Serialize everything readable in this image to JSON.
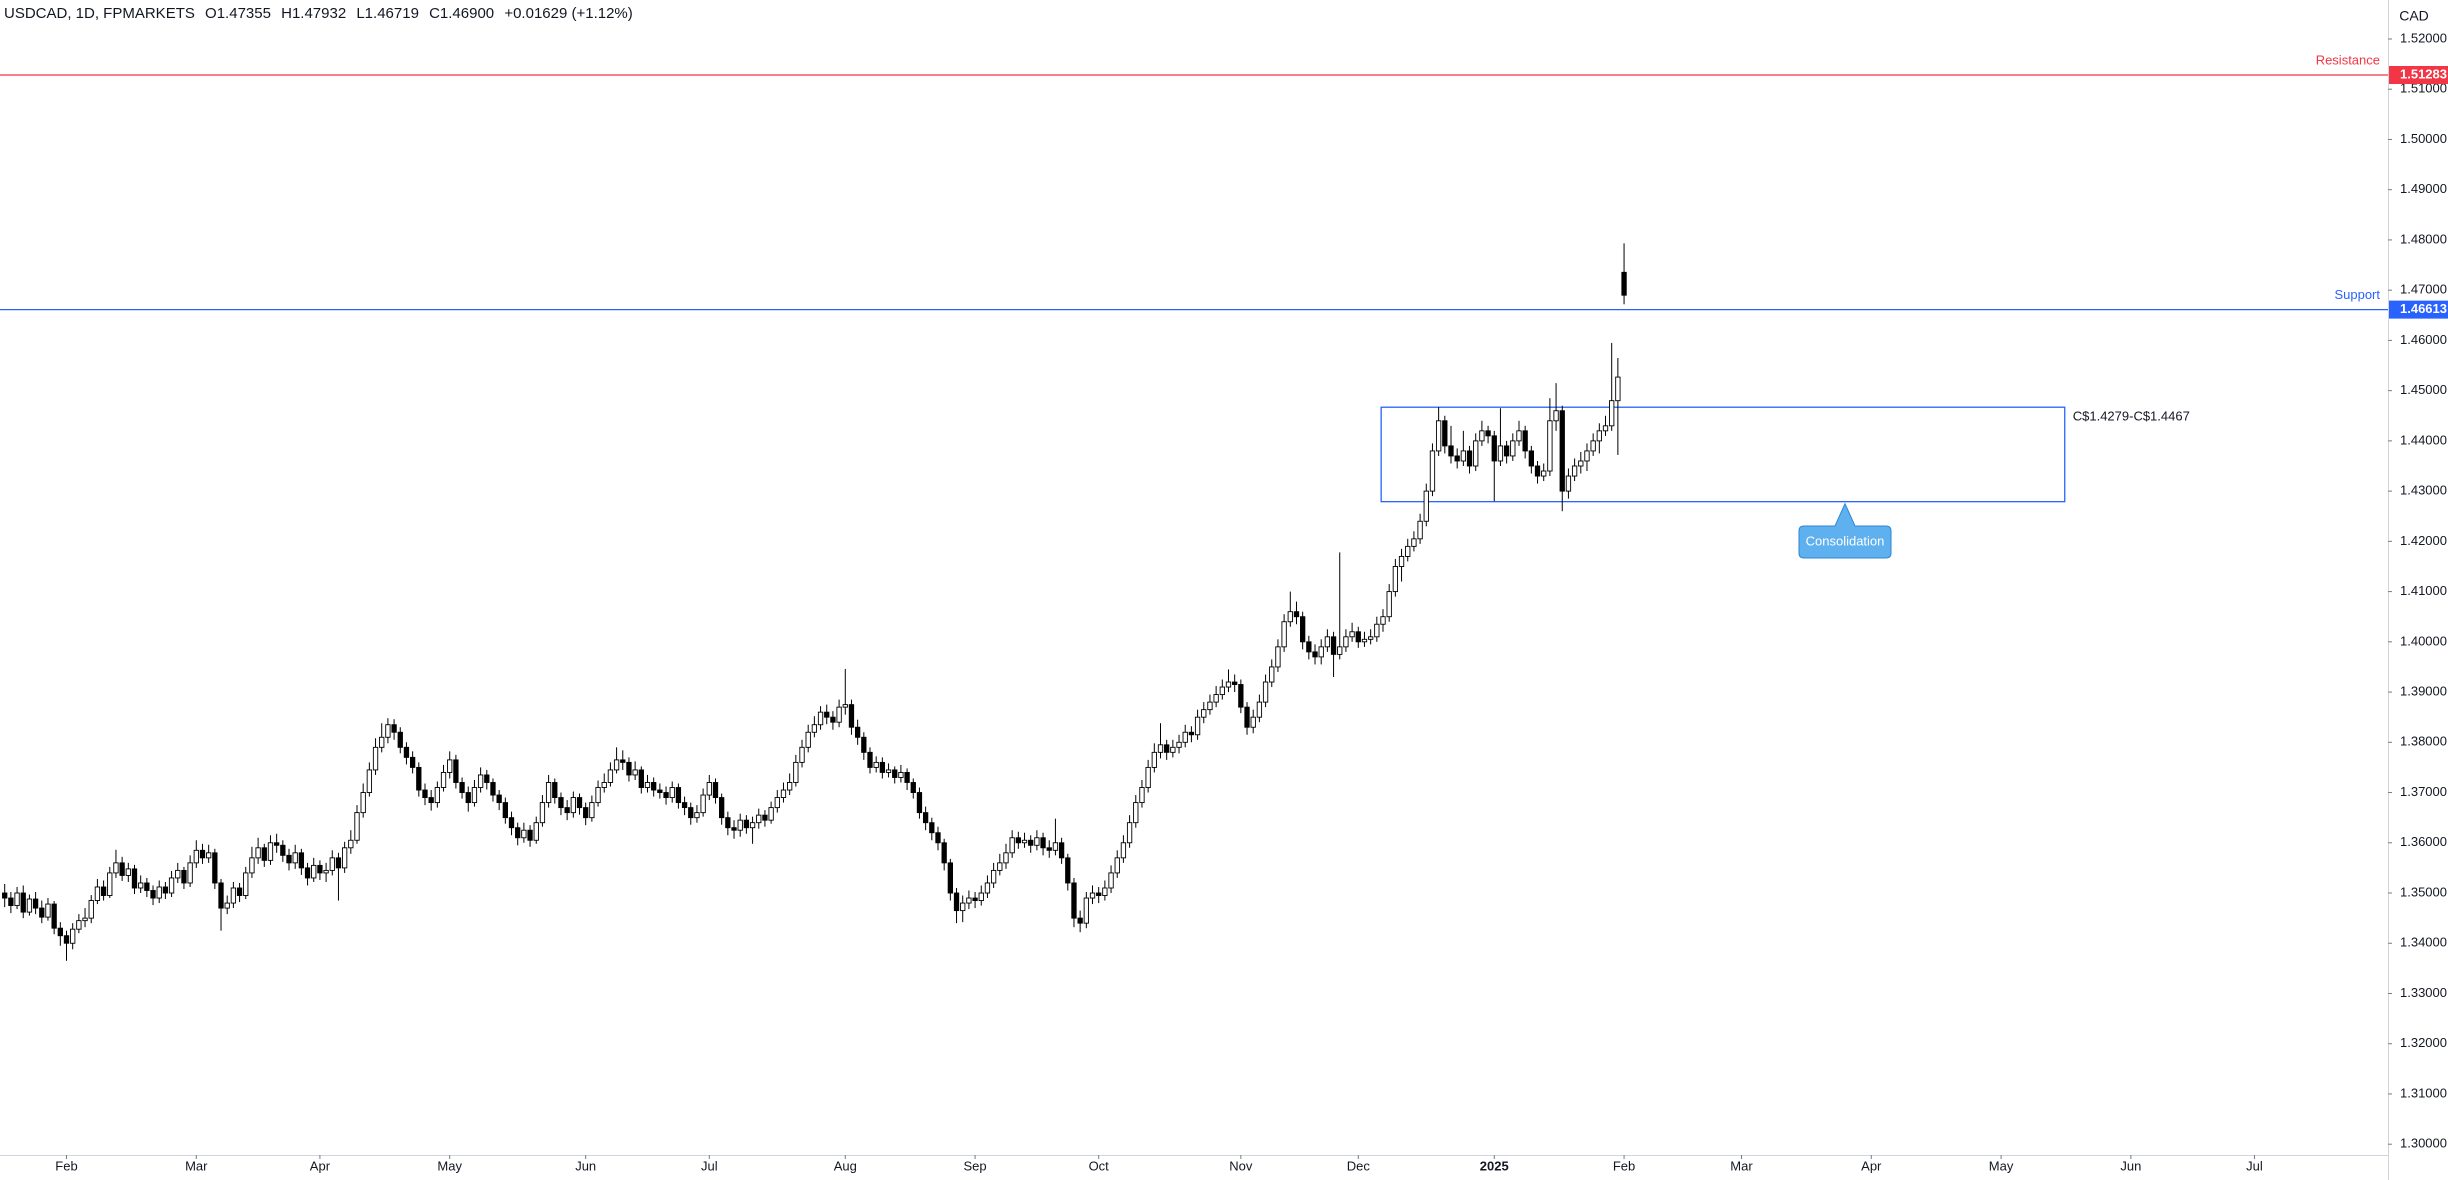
{
  "chart_data": {
    "type": "candlestick",
    "header": {
      "symbol": "USDCAD, 1D, FPMARKETS",
      "open": "O1.47355",
      "high": "H1.47932",
      "low": "L1.46719",
      "close": "C1.46900",
      "change": "+0.01629 (+1.12%)"
    },
    "y_axis_label": "CAD",
    "up_color": "#ffffff",
    "down_color": "#000000",
    "open": [
      1.35,
      1.349,
      1.3475,
      1.35,
      1.3462,
      1.3488,
      1.347,
      1.3452,
      1.3478,
      1.343,
      1.3415,
      1.34,
      1.3428,
      1.3445,
      1.345,
      1.3485,
      1.3512,
      1.3495,
      1.354,
      1.356,
      1.3535,
      1.3548,
      1.351,
      1.352,
      1.3505,
      1.349,
      1.3512,
      1.35,
      1.353,
      1.3545,
      1.352,
      1.356,
      1.3585,
      1.357,
      1.358,
      1.352,
      1.347,
      1.348,
      1.351,
      1.3495,
      1.354,
      1.357,
      1.359,
      1.3565,
      1.36,
      1.3595,
      1.3575,
      1.356,
      1.358,
      1.355,
      1.353,
      1.3555,
      1.354,
      1.3545,
      1.357,
      1.355,
      1.359,
      1.3605,
      1.366,
      1.37,
      1.3745,
      1.379,
      1.381,
      1.3835,
      1.382,
      1.379,
      1.377,
      1.375,
      1.3705,
      1.369,
      1.368,
      1.371,
      1.374,
      1.3765,
      1.372,
      1.37,
      1.368,
      1.371,
      1.3735,
      1.372,
      1.3695,
      1.368,
      1.365,
      1.363,
      1.361,
      1.3625,
      1.3605,
      1.364,
      1.368,
      1.372,
      1.369,
      1.367,
      1.366,
      1.369,
      1.367,
      1.365,
      1.368,
      1.371,
      1.372,
      1.3745,
      1.3765,
      1.376,
      1.3735,
      1.3745,
      1.371,
      1.372,
      1.3705,
      1.37,
      1.369,
      1.371,
      1.368,
      1.367,
      1.365,
      1.366,
      1.3695,
      1.372,
      1.369,
      1.365,
      1.363,
      1.3625,
      1.3645,
      1.363,
      1.364,
      1.3655,
      1.3645,
      1.367,
      1.369,
      1.3705,
      1.372,
      1.376,
      1.379,
      1.382,
      1.3835,
      1.386,
      1.385,
      1.384,
      1.387,
      1.3875,
      1.383,
      1.381,
      1.378,
      1.375,
      1.376,
      1.374,
      1.3745,
      1.373,
      1.374,
      1.372,
      1.37,
      1.366,
      1.364,
      1.362,
      1.36,
      1.356,
      1.35,
      1.3465,
      1.348,
      1.349,
      1.3485,
      1.35,
      1.352,
      1.3545,
      1.356,
      1.358,
      1.361,
      1.36,
      1.3605,
      1.3595,
      1.361,
      1.359,
      1.3585,
      1.36,
      1.357,
      1.352,
      1.345,
      1.344,
      1.349,
      1.35,
      1.3495,
      1.351,
      1.354,
      1.357,
      1.36,
      1.364,
      1.368,
      1.371,
      1.375,
      1.378,
      1.3795,
      1.378,
      1.379,
      1.38,
      1.382,
      1.3815,
      1.385,
      1.3865,
      1.388,
      1.3895,
      1.391,
      1.392,
      1.3915,
      1.387,
      1.383,
      1.385,
      1.388,
      1.392,
      1.395,
      1.399,
      1.404,
      1.406,
      1.405,
      1.4,
      1.398,
      1.397,
      1.399,
      1.401,
      1.3975,
      1.399,
      1.401,
      1.402,
      1.4,
      1.4005,
      1.401,
      1.4035,
      1.405,
      1.41,
      1.415,
      1.417,
      1.419,
      1.4205,
      1.424,
      1.43,
      1.438,
      1.444,
      1.439,
      1.437,
      1.436,
      1.438,
      1.435,
      1.44,
      1.442,
      1.441,
      1.436,
      1.439,
      1.437,
      1.44,
      1.442,
      1.438,
      1.435,
      1.433,
      1.434,
      1.444,
      1.446,
      1.43,
      1.433,
      1.435,
      1.436,
      1.438,
      1.44,
      1.442,
      1.443,
      1.448,
      1.47355
    ],
    "high": [
      1.3518,
      1.3502,
      1.3512,
      1.3515,
      1.3497,
      1.3502,
      1.3485,
      1.349,
      1.3484,
      1.3442,
      1.3425,
      1.344,
      1.3458,
      1.347,
      1.3496,
      1.3528,
      1.3525,
      1.3552,
      1.3586,
      1.3572,
      1.356,
      1.3556,
      1.3535,
      1.353,
      1.3515,
      1.3525,
      1.3522,
      1.3544,
      1.356,
      1.3552,
      1.3575,
      1.3605,
      1.3598,
      1.3596,
      1.3588,
      1.3528,
      1.3495,
      1.3522,
      1.352,
      1.3552,
      1.3592,
      1.361,
      1.3598,
      1.3615,
      1.3618,
      1.3605,
      1.3588,
      1.3596,
      1.3588,
      1.356,
      1.357,
      1.3565,
      1.356,
      1.3585,
      1.358,
      1.3602,
      1.3625,
      1.3675,
      1.3718,
      1.376,
      1.3808,
      1.3838,
      1.3848,
      1.3846,
      1.383,
      1.38,
      1.3782,
      1.376,
      1.3718,
      1.3705,
      1.3722,
      1.3755,
      1.3782,
      1.3775,
      1.373,
      1.3712,
      1.3725,
      1.375,
      1.3745,
      1.3728,
      1.3705,
      1.369,
      1.3662,
      1.364,
      1.364,
      1.3635,
      1.3652,
      1.3695,
      1.3735,
      1.3728,
      1.37,
      1.3685,
      1.3702,
      1.3698,
      1.368,
      1.3694,
      1.3724,
      1.3738,
      1.376,
      1.379,
      1.3784,
      1.377,
      1.3762,
      1.3752,
      1.3735,
      1.373,
      1.3718,
      1.3712,
      1.3722,
      1.3718,
      1.3692,
      1.368,
      1.3675,
      1.3708,
      1.3735,
      1.3728,
      1.3698,
      1.3662,
      1.3645,
      1.3658,
      1.3655,
      1.3652,
      1.3668,
      1.3665,
      1.3682,
      1.3705,
      1.372,
      1.3738,
      1.3775,
      1.3805,
      1.3835,
      1.3852,
      1.3872,
      1.3875,
      1.3862,
      1.3885,
      1.3946,
      1.3885,
      1.3845,
      1.382,
      1.379,
      1.3772,
      1.377,
      1.3758,
      1.3752,
      1.3755,
      1.3748,
      1.3728,
      1.371,
      1.3672,
      1.365,
      1.3632,
      1.3608,
      1.3568,
      1.351,
      1.3495,
      1.3505,
      1.3502,
      1.3515,
      1.3535,
      1.356,
      1.3578,
      1.3598,
      1.3625,
      1.3622,
      1.362,
      1.3615,
      1.3625,
      1.362,
      1.3605,
      1.3648,
      1.361,
      1.3578,
      1.353,
      1.3465,
      1.3502,
      1.3515,
      1.3512,
      1.3525,
      1.3555,
      1.3585,
      1.3615,
      1.3655,
      1.3695,
      1.3725,
      1.3765,
      1.3798,
      1.3838,
      1.3805,
      1.3805,
      1.3815,
      1.3835,
      1.3832,
      1.3865,
      1.388,
      1.3895,
      1.3912,
      1.3925,
      1.3945,
      1.3935,
      1.3925,
      1.388,
      1.3865,
      1.3895,
      1.3935,
      1.3965,
      1.4005,
      1.4055,
      1.41,
      1.408,
      1.406,
      1.4012,
      1.3995,
      1.4005,
      1.4025,
      1.402,
      1.4178,
      1.4025,
      1.4038,
      1.403,
      1.402,
      1.4025,
      1.405,
      1.4065,
      1.4115,
      1.4165,
      1.4185,
      1.4205,
      1.422,
      1.4255,
      1.4315,
      1.4395,
      1.4467,
      1.445,
      1.443,
      1.4385,
      1.442,
      1.439,
      1.4415,
      1.444,
      1.443,
      1.442,
      1.4465,
      1.44,
      1.4415,
      1.444,
      1.443,
      1.439,
      1.436,
      1.4355,
      1.4485,
      1.4515,
      1.447,
      1.4345,
      1.4365,
      1.4378,
      1.4395,
      1.4415,
      1.4435,
      1.445,
      1.4595,
      1.4565,
      1.47932
    ],
    "low": [
      1.3472,
      1.346,
      1.3468,
      1.345,
      1.3455,
      1.3458,
      1.344,
      1.3445,
      1.3418,
      1.3395,
      1.3365,
      1.3388,
      1.342,
      1.3432,
      1.344,
      1.3478,
      1.3485,
      1.349,
      1.353,
      1.3524,
      1.3522,
      1.3498,
      1.35,
      1.3492,
      1.3476,
      1.348,
      1.3488,
      1.3492,
      1.352,
      1.3508,
      1.3512,
      1.355,
      1.3558,
      1.356,
      1.3508,
      1.3425,
      1.3458,
      1.347,
      1.3482,
      1.3488,
      1.353,
      1.3558,
      1.3552,
      1.3556,
      1.358,
      1.3562,
      1.3545,
      1.3548,
      1.3536,
      1.3515,
      1.3522,
      1.3526,
      1.3522,
      1.3535,
      1.3485,
      1.354,
      1.3578,
      1.3598,
      1.365,
      1.3692,
      1.3735,
      1.378,
      1.3798,
      1.3805,
      1.3778,
      1.3756,
      1.3738,
      1.3692,
      1.3675,
      1.3664,
      1.367,
      1.3702,
      1.3728,
      1.3708,
      1.3688,
      1.3662,
      1.3672,
      1.37,
      1.3706,
      1.3682,
      1.3665,
      1.3638,
      1.3615,
      1.3595,
      1.36,
      1.3592,
      1.3598,
      1.3632,
      1.367,
      1.3678,
      1.3655,
      1.3645,
      1.365,
      1.3656,
      1.3635,
      1.3642,
      1.3672,
      1.37,
      1.3712,
      1.3738,
      1.3745,
      1.3722,
      1.3725,
      1.3698,
      1.37,
      1.3692,
      1.3688,
      1.3676,
      1.368,
      1.3668,
      1.3655,
      1.3636,
      1.364,
      1.3652,
      1.3685,
      1.3678,
      1.3636,
      1.3615,
      1.3608,
      1.3612,
      1.3618,
      1.3598,
      1.3628,
      1.3632,
      1.3638,
      1.366,
      1.368,
      1.3695,
      1.3712,
      1.375,
      1.378,
      1.381,
      1.3825,
      1.3836,
      1.3825,
      1.383,
      1.3855,
      1.3815,
      1.3795,
      1.3765,
      1.3738,
      1.374,
      1.3728,
      1.373,
      1.3718,
      1.372,
      1.3705,
      1.3688,
      1.3648,
      1.3625,
      1.3605,
      1.3585,
      1.3545,
      1.3485,
      1.344,
      1.3442,
      1.3468,
      1.347,
      1.3475,
      1.349,
      1.351,
      1.3535,
      1.3548,
      1.357,
      1.3588,
      1.359,
      1.358,
      1.3585,
      1.3575,
      1.357,
      1.3575,
      1.3558,
      1.3505,
      1.3432,
      1.3422,
      1.343,
      1.3478,
      1.348,
      1.3485,
      1.35,
      1.353,
      1.356,
      1.359,
      1.363,
      1.367,
      1.37,
      1.374,
      1.3768,
      1.3765,
      1.377,
      1.3778,
      1.379,
      1.38,
      1.3805,
      1.3838,
      1.3855,
      1.387,
      1.3885,
      1.39,
      1.39,
      1.3858,
      1.3815,
      1.3818,
      1.384,
      1.387,
      1.391,
      1.394,
      1.398,
      1.403,
      1.4035,
      1.3985,
      1.3965,
      1.3955,
      1.3955,
      1.398,
      1.393,
      1.3965,
      1.398,
      1.4,
      1.3988,
      1.399,
      1.3995,
      1.4,
      1.402,
      1.404,
      1.409,
      1.412,
      1.416,
      1.418,
      1.4195,
      1.423,
      1.429,
      1.437,
      1.4375,
      1.4355,
      1.4345,
      1.435,
      1.4335,
      1.434,
      1.439,
      1.4395,
      1.428,
      1.435,
      1.4355,
      1.436,
      1.439,
      1.4365,
      1.4335,
      1.4315,
      1.432,
      1.433,
      1.442,
      1.426,
      1.4285,
      1.432,
      1.4335,
      1.434,
      1.437,
      1.4375,
      1.441,
      1.442,
      1.4372,
      1.46719
    ],
    "close": [
      1.349,
      1.3475,
      1.35,
      1.3462,
      1.3488,
      1.347,
      1.3452,
      1.3478,
      1.343,
      1.3415,
      1.34,
      1.3428,
      1.3445,
      1.345,
      1.3485,
      1.3512,
      1.3495,
      1.354,
      1.356,
      1.3535,
      1.3548,
      1.351,
      1.352,
      1.3505,
      1.349,
      1.3512,
      1.35,
      1.353,
      1.3545,
      1.352,
      1.356,
      1.3585,
      1.357,
      1.358,
      1.352,
      1.347,
      1.348,
      1.351,
      1.3495,
      1.354,
      1.357,
      1.359,
      1.3565,
      1.36,
      1.3595,
      1.3575,
      1.356,
      1.358,
      1.355,
      1.353,
      1.3555,
      1.354,
      1.3545,
      1.357,
      1.355,
      1.359,
      1.3605,
      1.366,
      1.37,
      1.3745,
      1.379,
      1.381,
      1.3835,
      1.382,
      1.379,
      1.377,
      1.375,
      1.3705,
      1.369,
      1.368,
      1.371,
      1.374,
      1.3765,
      1.372,
      1.37,
      1.368,
      1.371,
      1.3735,
      1.372,
      1.3695,
      1.368,
      1.365,
      1.363,
      1.361,
      1.3625,
      1.3605,
      1.364,
      1.368,
      1.372,
      1.369,
      1.367,
      1.366,
      1.369,
      1.367,
      1.365,
      1.368,
      1.371,
      1.372,
      1.3745,
      1.3765,
      1.376,
      1.3735,
      1.3745,
      1.371,
      1.372,
      1.3705,
      1.37,
      1.369,
      1.371,
      1.368,
      1.367,
      1.365,
      1.366,
      1.3695,
      1.372,
      1.369,
      1.365,
      1.363,
      1.3625,
      1.3645,
      1.363,
      1.364,
      1.3655,
      1.3645,
      1.367,
      1.369,
      1.3705,
      1.372,
      1.376,
      1.379,
      1.382,
      1.3835,
      1.386,
      1.385,
      1.384,
      1.387,
      1.3875,
      1.383,
      1.381,
      1.378,
      1.375,
      1.376,
      1.374,
      1.3745,
      1.373,
      1.374,
      1.372,
      1.37,
      1.366,
      1.364,
      1.362,
      1.36,
      1.356,
      1.35,
      1.3465,
      1.348,
      1.349,
      1.3485,
      1.35,
      1.352,
      1.3545,
      1.356,
      1.358,
      1.361,
      1.36,
      1.3605,
      1.3595,
      1.361,
      1.359,
      1.3585,
      1.36,
      1.357,
      1.352,
      1.345,
      1.344,
      1.349,
      1.35,
      1.3495,
      1.351,
      1.354,
      1.357,
      1.36,
      1.364,
      1.368,
      1.371,
      1.375,
      1.378,
      1.3795,
      1.378,
      1.379,
      1.38,
      1.382,
      1.3815,
      1.385,
      1.3865,
      1.388,
      1.3895,
      1.391,
      1.392,
      1.3915,
      1.387,
      1.383,
      1.385,
      1.388,
      1.392,
      1.395,
      1.399,
      1.404,
      1.406,
      1.405,
      1.4,
      1.398,
      1.397,
      1.399,
      1.401,
      1.3975,
      1.399,
      1.401,
      1.402,
      1.4,
      1.4005,
      1.401,
      1.4035,
      1.405,
      1.41,
      1.415,
      1.417,
      1.419,
      1.4205,
      1.424,
      1.43,
      1.438,
      1.444,
      1.439,
      1.437,
      1.436,
      1.438,
      1.435,
      1.44,
      1.442,
      1.441,
      1.436,
      1.439,
      1.437,
      1.44,
      1.442,
      1.438,
      1.435,
      1.433,
      1.434,
      1.444,
      1.446,
      1.43,
      1.433,
      1.435,
      1.436,
      1.438,
      1.44,
      1.442,
      1.443,
      1.448,
      1.4527,
      1.469
    ],
    "xlim": [
      -0.76,
      385.6
    ],
    "xticks": [
      {
        "value": 10,
        "label": "Feb"
      },
      {
        "value": 31,
        "label": "Mar"
      },
      {
        "value": 51,
        "label": "Apr"
      },
      {
        "value": 72,
        "label": "May"
      },
      {
        "value": 94,
        "label": "Jun"
      },
      {
        "value": 114,
        "label": "Jul"
      },
      {
        "value": 136,
        "label": "Aug"
      },
      {
        "value": 157,
        "label": "Sep"
      },
      {
        "value": 177,
        "label": "Oct"
      },
      {
        "value": 200,
        "label": "Nov"
      },
      {
        "value": 219,
        "label": "Dec"
      },
      {
        "value": 241,
        "label": "2025"
      },
      {
        "value": 262,
        "label": "Feb"
      },
      {
        "value": 281,
        "label": "Mar"
      },
      {
        "value": 302,
        "label": "Apr"
      },
      {
        "value": 323,
        "label": "May"
      },
      {
        "value": 344,
        "label": "Jun"
      },
      {
        "value": 364,
        "label": "Jul"
      }
    ],
    "ylim": [
      1.29785,
      1.52776
    ],
    "yticks": [
      {
        "value": 1.3,
        "label": "1.30000"
      },
      {
        "value": 1.31,
        "label": "1.31000"
      },
      {
        "value": 1.32,
        "label": "1.32000"
      },
      {
        "value": 1.33,
        "label": "1.33000"
      },
      {
        "value": 1.34,
        "label": "1.34000"
      },
      {
        "value": 1.35,
        "label": "1.35000"
      },
      {
        "value": 1.36,
        "label": "1.36000"
      },
      {
        "value": 1.37,
        "label": "1.37000"
      },
      {
        "value": 1.38,
        "label": "1.38000"
      },
      {
        "value": 1.39,
        "label": "1.39000"
      },
      {
        "value": 1.4,
        "label": "1.40000"
      },
      {
        "value": 1.41,
        "label": "1.41000"
      },
      {
        "value": 1.42,
        "label": "1.42000"
      },
      {
        "value": 1.43,
        "label": "1.43000"
      },
      {
        "value": 1.44,
        "label": "1.44000"
      },
      {
        "value": 1.45,
        "label": "1.45000"
      },
      {
        "value": 1.46,
        "label": "1.46000"
      },
      {
        "value": 1.47,
        "label": "1.47000"
      },
      {
        "value": 1.48,
        "label": "1.48000"
      },
      {
        "value": 1.49,
        "label": "1.49000"
      },
      {
        "value": 1.5,
        "label": "1.50000"
      },
      {
        "value": 1.51,
        "label": "1.51000"
      },
      {
        "value": 1.52,
        "label": "1.52000"
      }
    ],
    "hlines": [
      {
        "name": "Resistance",
        "value": 1.51283,
        "color": "#f23645"
      },
      {
        "name": "Support",
        "value": 1.46613,
        "color": "#2962ff"
      }
    ],
    "box": {
      "x": [
        222.7,
        333.3
      ],
      "y": [
        1.4279,
        1.4467
      ],
      "color": "#2962ff",
      "label": "C$1.4279-C$1.4467"
    },
    "callout": {
      "text": "Consolidation",
      "color": "#5eb0ef"
    }
  }
}
